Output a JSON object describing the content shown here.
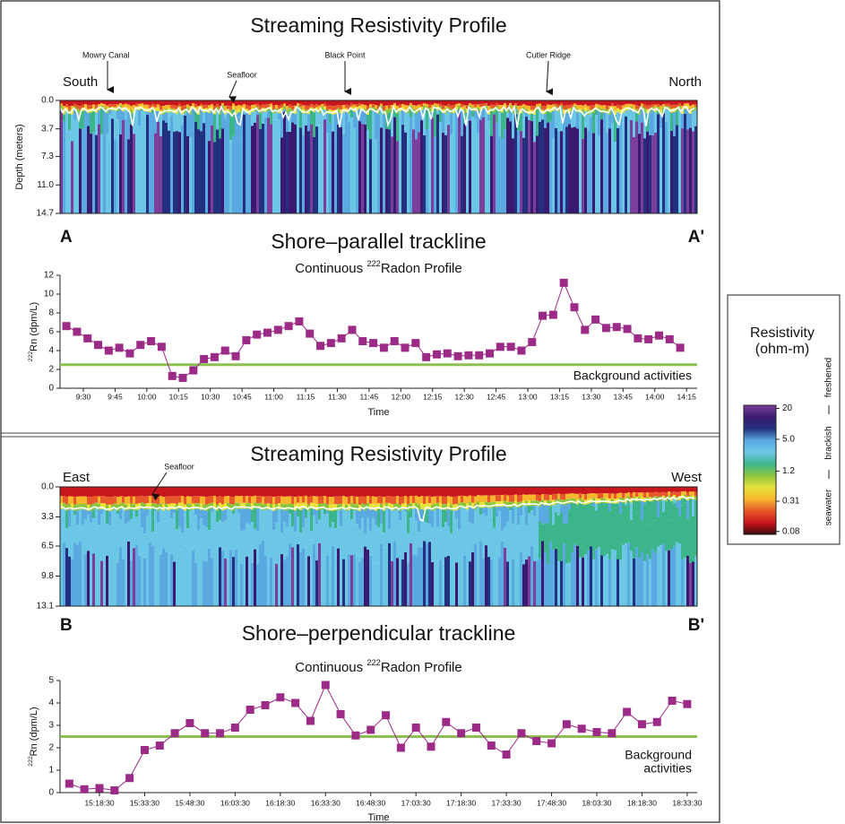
{
  "chart_data": [
    {
      "type": "heatmap",
      "title": "Streaming Resistivity Profile",
      "ylabel": "Depth (meters)",
      "left_label": "South",
      "right_label": "North",
      "start_label": "A",
      "end_label": "A'",
      "caption": "Shore–parallel trackline",
      "annotations": [
        "Mowry Canal",
        "Seafloor",
        "Black Point",
        "Cutler Ridge"
      ],
      "ylim": [
        0,
        14.7
      ],
      "yticks": [
        {
          "value": 0,
          "label": "0.0"
        },
        3.7,
        7.3,
        {
          "value": 11,
          "label": "11.0"
        },
        14.7
      ]
    },
    {
      "type": "line",
      "title": {
        "pre": "Continuous ",
        "sup": "222",
        "post": "Radon Profile"
      },
      "ylabel": {
        "sup": "222",
        "post": "Rn (dpm/L)"
      },
      "xlabel": "Time",
      "color": "#9c2a87",
      "x": [
        "9:22",
        "9:27",
        "9:32",
        "9:37",
        "9:42",
        "9:47",
        "9:52",
        "9:57",
        "10:02",
        "10:07",
        "10:12",
        "10:17",
        "10:22",
        "10:27",
        "10:32",
        "10:37",
        "10:42",
        "10:47",
        "10:52",
        "10:57",
        "11:02",
        "11:07",
        "11:12",
        "11:17",
        "11:22",
        "11:27",
        "11:32",
        "11:37",
        "11:42",
        "11:47",
        "11:52",
        "11:57",
        "12:02",
        "12:07",
        "12:12",
        "12:17",
        "12:22",
        "12:27",
        "12:32",
        "12:37",
        "12:42",
        "12:47",
        "12:52",
        "12:57",
        "13:02",
        "13:07",
        "13:12",
        "13:17",
        "13:22",
        "13:27",
        "13:32",
        "13:37",
        "13:42",
        "13:47",
        "13:52",
        "13:57",
        "14:02",
        "14:07",
        "14:12"
      ],
      "values": [
        6.6,
        6.0,
        5.3,
        4.6,
        4.0,
        4.3,
        3.7,
        4.6,
        5.0,
        4.4,
        1.3,
        1.1,
        1.9,
        3.1,
        3.3,
        4.0,
        3.4,
        5.1,
        5.7,
        5.9,
        6.2,
        6.6,
        7.1,
        5.8,
        4.5,
        4.8,
        5.3,
        6.2,
        5.0,
        4.8,
        4.3,
        5.0,
        4.3,
        4.8,
        3.3,
        3.6,
        3.7,
        3.4,
        3.5,
        3.5,
        3.7,
        4.4,
        4.4,
        4.0,
        4.9,
        7.7,
        7.8,
        11.2,
        8.6,
        6.2,
        7.3,
        6.4,
        6.5,
        6.3,
        5.3,
        5.2,
        5.6,
        5.2,
        4.3
      ],
      "xlim": [
        "9:19",
        "14:20"
      ],
      "xticks": [
        "9:30",
        "9:45",
        "10:00",
        "10:15",
        "10:30",
        "10:45",
        "11:00",
        "11:15",
        "11:30",
        "11:45",
        "12:00",
        "12:15",
        "12:30",
        "12:45",
        "13:00",
        "13:15",
        "13:30",
        "13:45",
        "14:00",
        "14:15"
      ],
      "ylim": [
        0,
        12
      ],
      "yticks": [
        0,
        2,
        4,
        6,
        8,
        10,
        12
      ],
      "background": {
        "value": 2.5,
        "label": [
          "Background activities"
        ],
        "color": "#8cc152"
      }
    },
    {
      "type": "heatmap",
      "title": "Streaming Resistivity Profile",
      "ylabel": "",
      "left_label": "East",
      "right_label": "West",
      "start_label": "B",
      "end_label": "B'",
      "caption": "Shore–perpendicular trackline",
      "annotations": [
        "Seafloor"
      ],
      "ylim": [
        0,
        13.1
      ],
      "yticks": [
        {
          "value": 0,
          "label": "0.0"
        },
        3.3,
        6.5,
        9.8,
        13.1
      ]
    },
    {
      "type": "line",
      "title": {
        "pre": "Continuous ",
        "sup": "222",
        "post": "Radon Profile"
      },
      "ylabel": {
        "sup": "222",
        "post": "Rn (dpm/L)"
      },
      "xlabel": "Time",
      "color": "#9c2a87",
      "x": [
        "15:08:30",
        "15:13:30",
        "15:18:30",
        "15:23:30",
        "15:28:30",
        "15:33:30",
        "15:38:30",
        "15:43:30",
        "15:48:30",
        "15:53:30",
        "15:58:30",
        "16:03:30",
        "16:08:30",
        "16:13:30",
        "16:18:30",
        "16:23:30",
        "16:28:30",
        "16:33:30",
        "16:38:30",
        "16:43:30",
        "16:48:30",
        "16:53:30",
        "16:58:30",
        "17:03:30",
        "17:08:30",
        "17:13:30",
        "17:18:30",
        "17:23:30",
        "17:28:30",
        "17:33:30",
        "17:38:30",
        "17:43:30",
        "17:48:30",
        "17:53:30",
        "17:58:30",
        "18:03:30",
        "18:08:30",
        "18:13:30",
        "18:18:30",
        "18:23:30",
        "18:28:30",
        "18:33:30"
      ],
      "values": [
        0.4,
        0.15,
        0.2,
        0.1,
        0.65,
        1.9,
        2.1,
        2.65,
        3.1,
        2.65,
        2.65,
        2.9,
        3.7,
        3.9,
        4.25,
        4.0,
        3.2,
        4.8,
        3.5,
        2.55,
        2.8,
        3.45,
        2.0,
        2.9,
        2.05,
        3.15,
        2.65,
        2.9,
        2.1,
        1.7,
        2.65,
        2.3,
        2.2,
        3.05,
        2.85,
        2.7,
        2.65,
        3.6,
        3.05,
        3.15,
        4.1,
        3.95
      ],
      "xlim": [
        "15:05:25",
        "18:36:48"
      ],
      "xticks": [
        "15:18:30",
        "15:33:30",
        "15:48:30",
        "16:03:30",
        "16:18:30",
        "16:33:30",
        "16:48:30",
        "17:03:30",
        "17:18:30",
        "17:33:30",
        "17:48:30",
        "18:03:30",
        "18:18:30",
        "18:33:30"
      ],
      "ylim": [
        0,
        5
      ],
      "yticks": [
        0,
        1,
        2,
        3,
        4,
        5
      ],
      "background": {
        "value": 2.5,
        "label": [
          "Background",
          "activities"
        ],
        "color": "#8cc152"
      }
    }
  ],
  "colorbar": {
    "title": [
      "Resistivity",
      "(ohm-m)"
    ],
    "log": true,
    "lim": [
      0.07,
      23
    ],
    "ticks": [
      20,
      {
        "value": 5,
        "label": "5.0"
      },
      1.2,
      0.31,
      0.08
    ],
    "groups": [
      "freshened",
      "brackish",
      "seawater"
    ],
    "colors": [
      "#3d0a0a",
      "#c8161d",
      "#e8582a",
      "#f7b52c",
      "#e8e23a",
      "#8cc63f",
      "#3db58a",
      "#6cc7e6",
      "#5aa9e0",
      "#23307f",
      "#3a1a70",
      "#7b3f9b"
    ]
  }
}
